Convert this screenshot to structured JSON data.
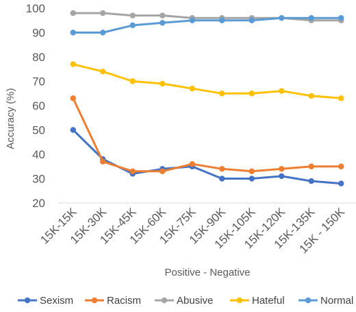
{
  "chart_data": {
    "type": "line",
    "title": "",
    "xlabel": "Positive - Negative",
    "ylabel": "Accuracy (%)",
    "ylim": [
      20,
      100
    ],
    "yticks": [
      20,
      30,
      40,
      50,
      60,
      70,
      80,
      90,
      100
    ],
    "grid": false,
    "legend_position": "bottom",
    "categories": [
      "15K-15K",
      "15K-30K",
      "15K-45K",
      "15K-60K",
      "15K-75K",
      "15K-90K",
      "15K-105K",
      "15K-120K",
      "15K-135K",
      "15K - 150K"
    ],
    "series": [
      {
        "name": "Sexism",
        "color": "#4472C4",
        "values": [
          50,
          38,
          32,
          34,
          35,
          30,
          30,
          31,
          29,
          28
        ]
      },
      {
        "name": "Racism",
        "color": "#ED7D31",
        "values": [
          63,
          37,
          33,
          33,
          36,
          34,
          33,
          34,
          35,
          35
        ]
      },
      {
        "name": "Abusive",
        "color": "#A5A5A5",
        "values": [
          98,
          98,
          97,
          97,
          96,
          96,
          96,
          96,
          95,
          95
        ]
      },
      {
        "name": "Hateful",
        "color": "#FFC000",
        "values": [
          77,
          74,
          70,
          69,
          67,
          65,
          65,
          66,
          64,
          63
        ]
      },
      {
        "name": "Normal",
        "color": "#5B9BD5",
        "values": [
          90,
          90,
          93,
          94,
          95,
          95,
          95,
          96,
          96,
          96
        ]
      }
    ]
  }
}
